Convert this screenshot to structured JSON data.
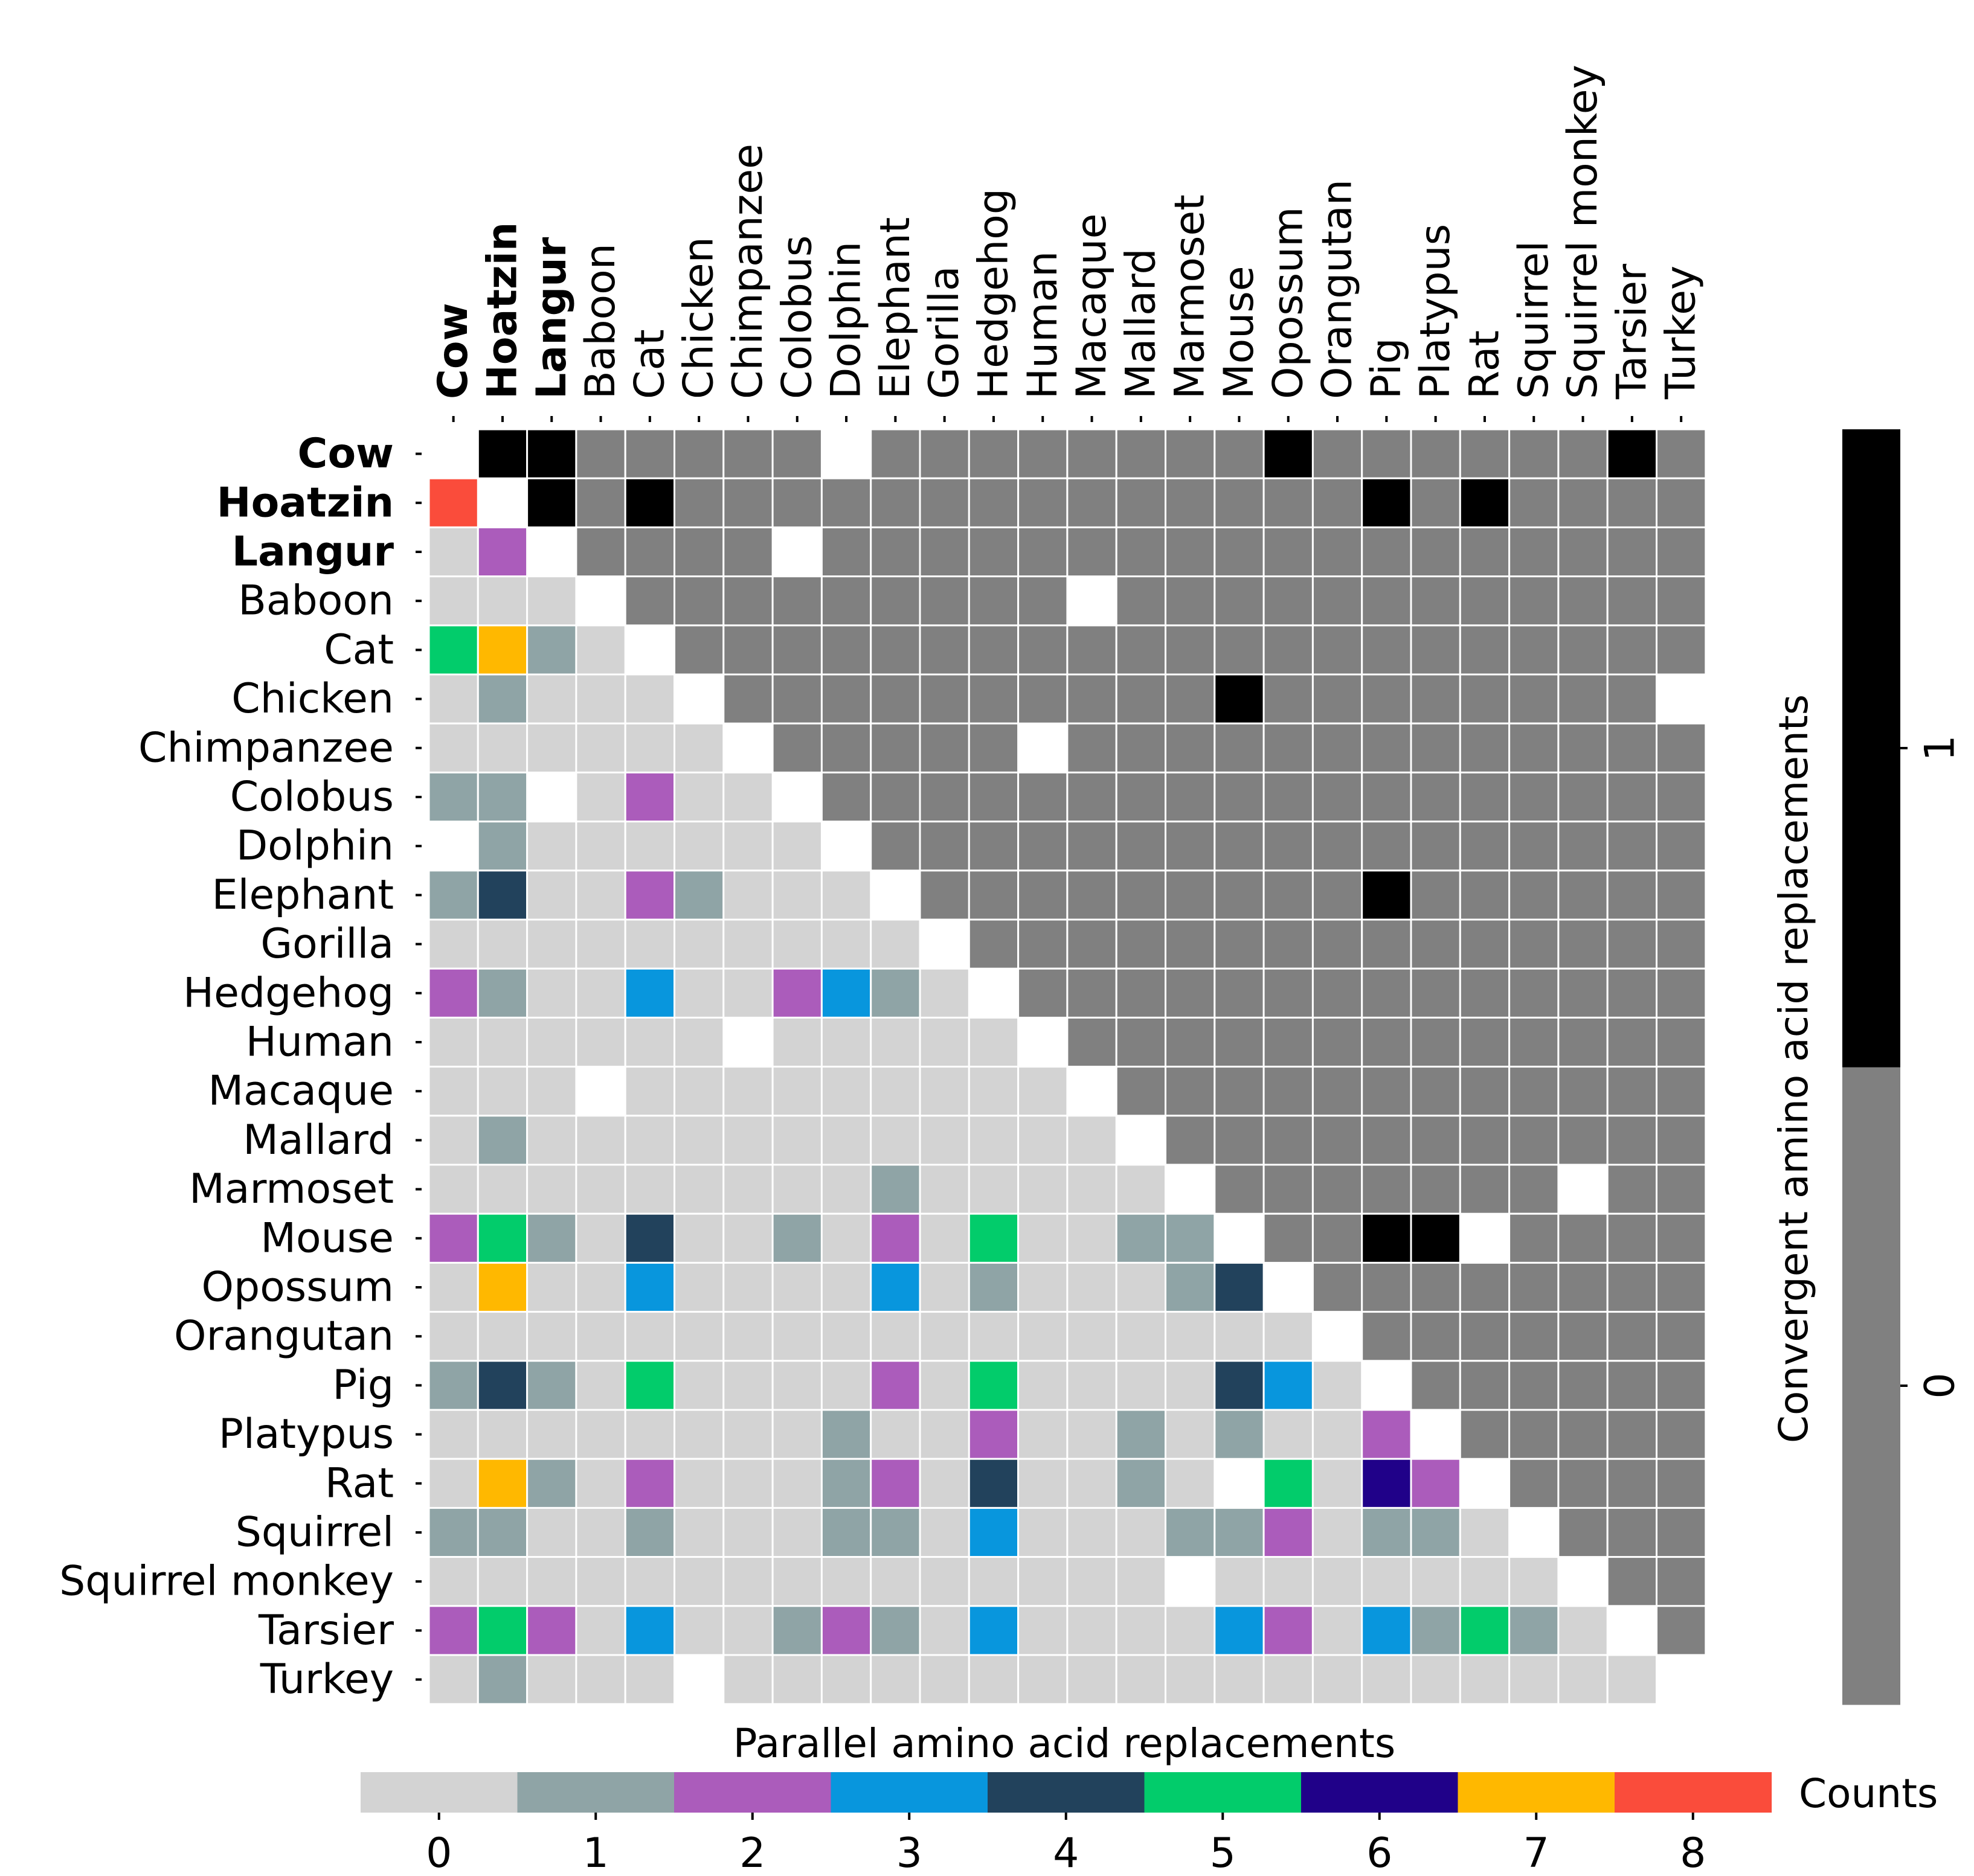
{
  "chart_data": {
    "type": "heatmap",
    "species": [
      "Cow",
      "Hoatzin",
      "Langur",
      "Baboon",
      "Cat",
      "Chicken",
      "Chimpanzee",
      "Colobus",
      "Dolphin",
      "Elephant",
      "Gorilla",
      "Hedgehog",
      "Human",
      "Macaque",
      "Mallard",
      "Marmoset",
      "Mouse",
      "Opossum",
      "Orangutan",
      "Pig",
      "Platypus",
      "Rat",
      "Squirrel",
      "Squirrel monkey",
      "Tarsier",
      "Turkey"
    ],
    "bold_species": [
      "Cow",
      "Hoatzin",
      "Langur"
    ],
    "parallel_lower_triangle": [
      [
        8
      ],
      [
        0,
        2
      ],
      [
        0,
        0,
        0
      ],
      [
        5,
        7,
        1,
        0
      ],
      [
        0,
        1,
        0,
        0,
        0
      ],
      [
        0,
        0,
        0,
        0,
        0,
        0
      ],
      [
        1,
        1,
        null,
        0,
        2,
        0,
        0
      ],
      [
        null,
        1,
        0,
        0,
        0,
        0,
        0,
        0
      ],
      [
        1,
        4,
        0,
        0,
        2,
        1,
        0,
        0,
        0
      ],
      [
        0,
        0,
        0,
        0,
        0,
        0,
        0,
        0,
        0,
        0
      ],
      [
        2,
        1,
        0,
        0,
        3,
        0,
        0,
        2,
        3,
        1,
        0
      ],
      [
        0,
        0,
        0,
        0,
        0,
        0,
        null,
        0,
        0,
        0,
        0,
        0
      ],
      [
        0,
        0,
        0,
        null,
        0,
        0,
        0,
        0,
        0,
        0,
        0,
        0,
        0
      ],
      [
        0,
        1,
        0,
        0,
        0,
        0,
        0,
        0,
        0,
        0,
        0,
        0,
        0,
        0
      ],
      [
        0,
        0,
        0,
        0,
        0,
        0,
        0,
        0,
        0,
        1,
        0,
        0,
        0,
        0,
        0
      ],
      [
        2,
        5,
        1,
        0,
        4,
        0,
        0,
        1,
        0,
        2,
        0,
        5,
        0,
        0,
        1,
        1
      ],
      [
        0,
        7,
        0,
        0,
        3,
        0,
        0,
        0,
        0,
        3,
        0,
        1,
        0,
        0,
        0,
        1,
        4
      ],
      [
        0,
        0,
        0,
        0,
        0,
        0,
        0,
        0,
        0,
        0,
        0,
        0,
        0,
        0,
        0,
        0,
        0,
        0
      ],
      [
        1,
        4,
        1,
        0,
        5,
        0,
        0,
        0,
        0,
        2,
        0,
        5,
        0,
        0,
        0,
        0,
        4,
        3,
        0
      ],
      [
        0,
        0,
        0,
        0,
        0,
        0,
        0,
        0,
        1,
        0,
        0,
        2,
        0,
        0,
        1,
        0,
        1,
        0,
        0,
        2
      ],
      [
        0,
        7,
        1,
        0,
        2,
        0,
        0,
        0,
        1,
        2,
        0,
        4,
        0,
        0,
        1,
        0,
        null,
        5,
        0,
        6,
        2
      ],
      [
        1,
        1,
        0,
        0,
        1,
        0,
        0,
        0,
        1,
        1,
        0,
        3,
        0,
        0,
        0,
        1,
        1,
        2,
        0,
        1,
        1,
        0
      ],
      [
        0,
        0,
        0,
        0,
        0,
        0,
        0,
        0,
        0,
        0,
        0,
        0,
        0,
        0,
        0,
        null,
        0,
        0,
        0,
        0,
        0,
        0,
        0
      ],
      [
        2,
        5,
        2,
        0,
        3,
        0,
        0,
        1,
        2,
        1,
        0,
        3,
        0,
        0,
        0,
        0,
        3,
        2,
        0,
        3,
        1,
        5,
        1,
        0
      ],
      [
        0,
        1,
        0,
        0,
        0,
        null,
        0,
        0,
        0,
        0,
        0,
        0,
        0,
        0,
        0,
        0,
        0,
        0,
        0,
        0,
        0,
        0,
        0,
        0,
        0
      ]
    ],
    "convergent_ones": [
      [
        "Cow",
        "Hoatzin"
      ],
      [
        "Cow",
        "Langur"
      ],
      [
        "Cow",
        "Opossum"
      ],
      [
        "Cow",
        "Tarsier"
      ],
      [
        "Hoatzin",
        "Langur"
      ],
      [
        "Hoatzin",
        "Cat"
      ],
      [
        "Hoatzin",
        "Pig"
      ],
      [
        "Hoatzin",
        "Rat"
      ],
      [
        "Chicken",
        "Mouse"
      ],
      [
        "Elephant",
        "Pig"
      ],
      [
        "Mouse",
        "Pig"
      ],
      [
        "Mouse",
        "Platypus"
      ]
    ],
    "convergent_missing": [
      [
        "Cow",
        "Dolphin"
      ],
      [
        "Langur",
        "Colobus"
      ],
      [
        "Baboon",
        "Macaque"
      ],
      [
        "Chicken",
        "Turkey"
      ],
      [
        "Chimpanzee",
        "Human"
      ],
      [
        "Marmoset",
        "Squirrel monkey"
      ],
      [
        "Mouse",
        "Rat"
      ]
    ],
    "parallel_colorbar": {
      "title": "Parallel amino acid replacements",
      "label": "Counts",
      "ticks": [
        "0",
        "1",
        "2",
        "3",
        "4",
        "5",
        "6",
        "7",
        "8"
      ],
      "colors": [
        "#d3d3d3",
        "#8fa4a6",
        "#ab5cbb",
        "#0896dd",
        "#22425c",
        "#02cc6b",
        "#200189",
        "#ffb800",
        "#fa4c3b"
      ]
    },
    "convergent_colorbar": {
      "title": "Convergent amino acid replacements",
      "ticks": [
        "0",
        "1"
      ],
      "colors": [
        "#808080",
        "#000000"
      ]
    }
  }
}
